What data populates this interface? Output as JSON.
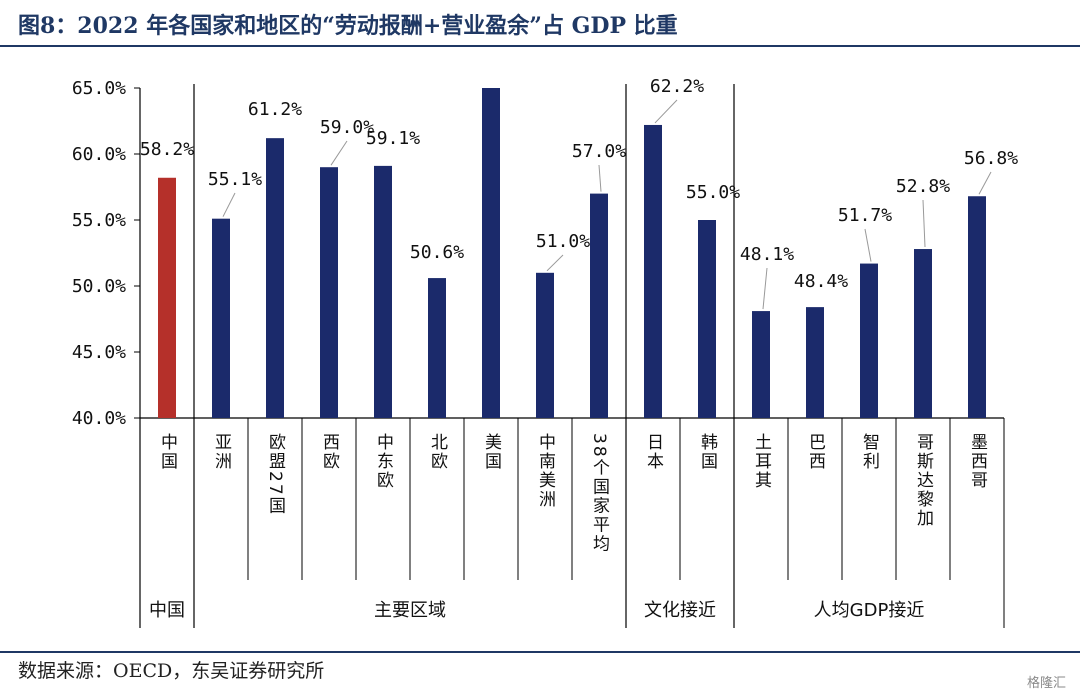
{
  "header": {
    "title": "图8：2022 年各国家和地区的“劳动报酬+营业盈余”占 GDP 比重"
  },
  "footer": {
    "source": "数据来源：OECD，东吴证券研究所",
    "watermark": "格隆汇"
  },
  "colors": {
    "highlight": "#b5302a",
    "bar": "#1b2a6b",
    "title": "#1f3864"
  },
  "chart_data": {
    "type": "bar",
    "title": "2022 年各国家和地区的“劳动报酬+营业盈余”占 GDP 比重",
    "ylim": [
      40,
      65
    ],
    "yticks": [
      40,
      45,
      50,
      55,
      60,
      65
    ],
    "ytick_labels": [
      "40.0%",
      "45.0%",
      "50.0%",
      "55.0%",
      "60.0%",
      "65.0%"
    ],
    "categories": [
      "中国",
      "亚洲",
      "欧盟27国",
      "西欧",
      "中东欧",
      "北欧",
      "美国",
      "中南美洲",
      "38个国家平均",
      "日本",
      "韩国",
      "土耳其",
      "巴西",
      "智利",
      "哥斯达黎加",
      "墨西哥"
    ],
    "values": [
      58.2,
      55.1,
      61.2,
      59.0,
      59.1,
      50.6,
      65.0,
      51.0,
      57.0,
      62.2,
      55.0,
      48.1,
      48.4,
      51.7,
      52.8,
      56.8
    ],
    "data_labels": [
      "58.2%",
      "55.1%",
      "61.2%",
      "59.0%",
      "59.1%",
      "50.6%",
      null,
      "51.0%",
      "57.0%",
      "62.2%",
      "55.0%",
      "48.1%",
      "48.4%",
      "51.7%",
      "52.8%",
      "56.8%"
    ],
    "highlight_index": 0,
    "groups": [
      {
        "label": "中国",
        "start": 0,
        "end": 0
      },
      {
        "label": "主要区域",
        "start": 1,
        "end": 8
      },
      {
        "label": "文化接近",
        "start": 9,
        "end": 10
      },
      {
        "label": "人均GDP接近",
        "start": 11,
        "end": 15
      }
    ],
    "grid": false,
    "legend": "none"
  }
}
